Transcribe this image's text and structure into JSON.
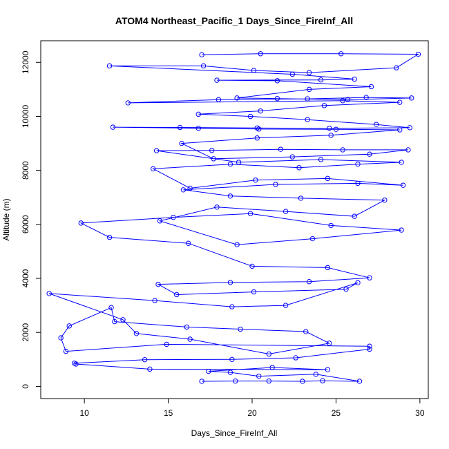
{
  "chart_data": {
    "type": "line",
    "title": "ATOM4 Northeast_Pacific_1 Days_Since_FireInf_All",
    "xlabel": "Days_Since_FireInf_All",
    "ylabel": "Altitude (m)",
    "xlim": [
      7.4,
      30.5
    ],
    "ylim": [
      -450,
      12800
    ],
    "x_ticks": [
      10,
      15,
      20,
      25,
      30
    ],
    "y_ticks": [
      0,
      2000,
      4000,
      6000,
      8000,
      10000,
      12000
    ],
    "marker": "open-circle",
    "grid": false,
    "legend": "none",
    "color": "#0000ff",
    "x": [
      17.0,
      19.0,
      21.0,
      23.0,
      24.2,
      26.4,
      23.8,
      20.4,
      18.7,
      17.4,
      21.2,
      24.5,
      13.9,
      9.5,
      9.4,
      13.6,
      18.8,
      22.6,
      27.0,
      27.0,
      14.9,
      8.9,
      8.6,
      9.1,
      11.6,
      11.8,
      16.1,
      19.3,
      23.2,
      24.6,
      21.0,
      16.3,
      13.1,
      12.3,
      7.9,
      14.2,
      18.8,
      22.0,
      26.3,
      25.6,
      20.1,
      15.5,
      14.4,
      18.7,
      23.4,
      27.0,
      24.5,
      20.0,
      16.2,
      11.5,
      9.8,
      15.3,
      19.9,
      24.7,
      28.9,
      23.6,
      19.1,
      14.5,
      17.9,
      22.0,
      26.1,
      27.9,
      22.9,
      18.7,
      15.9,
      21.4,
      26.3,
      29.0,
      24.5,
      20.2,
      16.3,
      14.1,
      18.7,
      22.8,
      26.3,
      28.9,
      24.1,
      19.2,
      14.3,
      17.6,
      21.7,
      25.4,
      29.3,
      27.0,
      22.4,
      17.7,
      15.8,
      20.3,
      24.7,
      28.8,
      25.0,
      20.4,
      16.8,
      11.7,
      15.7,
      20.3,
      24.6,
      29.4,
      27.4,
      23.3,
      19.9,
      16.8,
      20.5,
      24.3,
      28.8,
      25.4,
      12.6,
      18.0,
      23.3,
      26.8,
      29.5,
      25.7,
      21.5,
      19.1,
      23.4,
      27.1,
      21.5,
      17.9,
      24.1,
      26.1,
      22.4,
      11.5,
      17.1,
      20.1,
      23.4,
      28.6,
      29.9,
      25.3,
      20.5,
      17.0
    ],
    "y": [
      190,
      200,
      200,
      190,
      210,
      190,
      450,
      380,
      520,
      560,
      700,
      620,
      640,
      830,
      860,
      990,
      1000,
      1060,
      1380,
      1490,
      1560,
      1300,
      1800,
      2240,
      2920,
      2400,
      2200,
      2120,
      2030,
      1600,
      1200,
      1750,
      1960,
      2470,
      3440,
      3180,
      2950,
      3000,
      3840,
      3600,
      3500,
      3400,
      3780,
      3850,
      3880,
      4020,
      4400,
      4450,
      5300,
      5520,
      6050,
      6260,
      6400,
      5960,
      5790,
      5470,
      5250,
      6130,
      6640,
      6480,
      6300,
      6900,
      6970,
      7050,
      7280,
      7480,
      7520,
      7450,
      7700,
      7640,
      7340,
      8060,
      8230,
      8100,
      8230,
      8300,
      8400,
      8300,
      8730,
      8740,
      8780,
      8760,
      8760,
      8600,
      8500,
      8430,
      9000,
      9200,
      9300,
      9500,
      9520,
      9530,
      9560,
      9600,
      9590,
      9570,
      9560,
      9580,
      9700,
      9880,
      10000,
      10080,
      10200,
      10400,
      10520,
      10580,
      10500,
      10620,
      10650,
      10700,
      10680,
      10620,
      10660,
      10680,
      11000,
      11100,
      11320,
      11340,
      11350,
      11380,
      11560,
      11870,
      11870,
      11700,
      11620,
      11800,
      12300,
      12320,
      12320,
      12280
    ]
  }
}
